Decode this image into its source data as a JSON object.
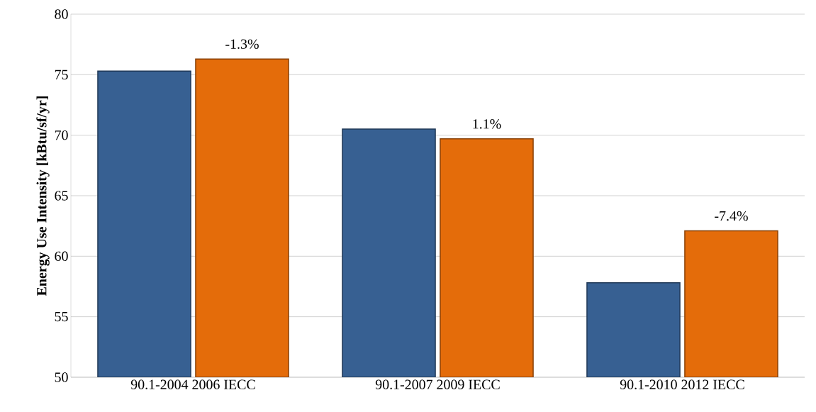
{
  "chart_data": {
    "type": "bar",
    "ylabel": "Energy Use Intensity [kBtu/sf/yr]",
    "categories": [
      "90.1-2004 2006 IECC",
      "90.1-2007 2009 IECC",
      "90.1-2010 2012 IECC"
    ],
    "series": [
      {
        "color": "#376092",
        "values": [
          75.3,
          70.5,
          57.8
        ]
      },
      {
        "color": "#e46c0a",
        "values": [
          76.3,
          69.7,
          62.1
        ]
      }
    ],
    "ylim": [
      50,
      80
    ],
    "yticks": [
      50,
      55,
      60,
      65,
      70,
      75,
      80
    ],
    "grid": "y",
    "annotations": [
      "-1.3%",
      "1.1%",
      "-7.4%"
    ]
  }
}
